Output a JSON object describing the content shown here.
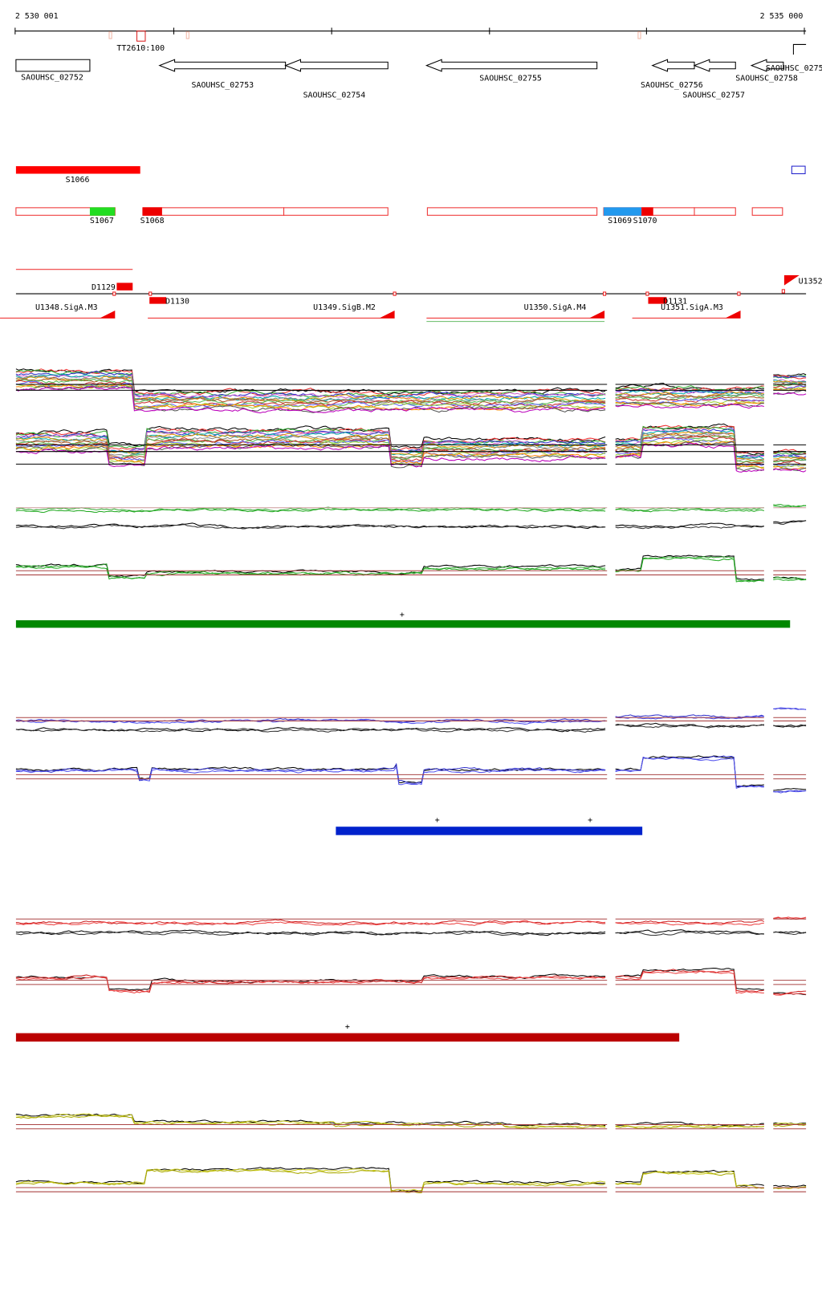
{
  "ruler": {
    "start": "2 530 001",
    "end": "2 535 000",
    "marker": "TT2610:100"
  },
  "genes": [
    "SAOUHSC_02752",
    "SAOUHSC_02753",
    "SAOUHSC_02754",
    "SAOUHSC_02755",
    "SAOUHSC_02756",
    "SAOUHSC_02757",
    "SAOUHSC_02758",
    "SAOUHSC_0275"
  ],
  "segments": [
    "S1066",
    "S1067",
    "S1068",
    "S1069",
    "S1070"
  ],
  "features": [
    "D1129",
    "D1130",
    "D1131",
    "U1348.SigA.M3",
    "U1349.SigB.M2",
    "U1350.SigA.M4",
    "U1351.SigA.M3",
    "U1352"
  ],
  "plus_markers": [
    "+",
    "+",
    "+",
    "+"
  ]
}
